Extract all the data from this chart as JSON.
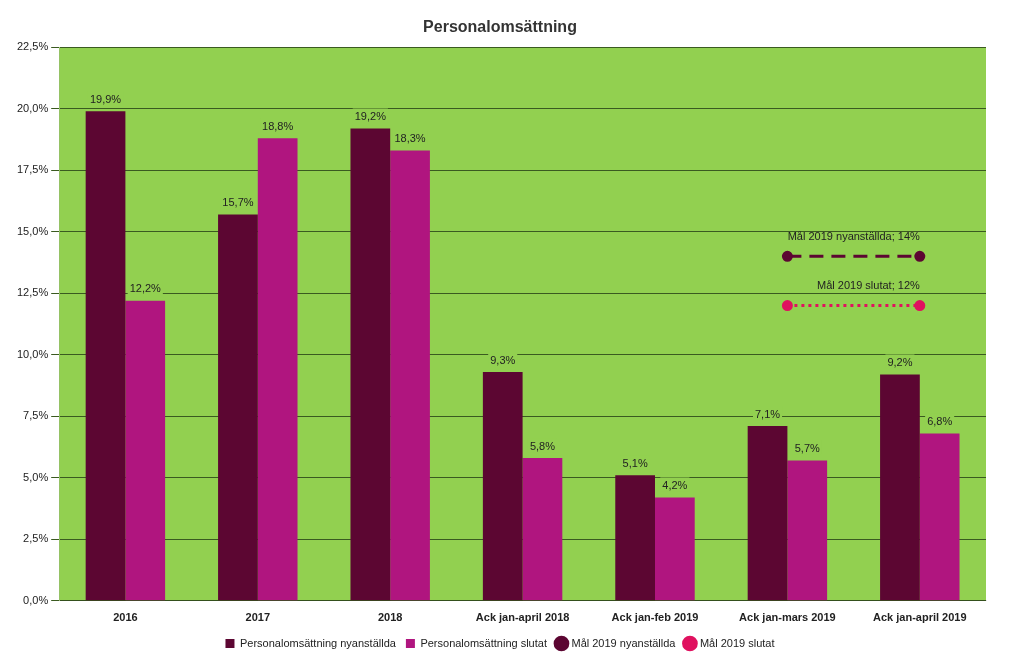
{
  "chart_data": {
    "type": "bar",
    "title": "Personalomsättning",
    "categories": [
      "2016",
      "2017",
      "2018",
      "Ack jan-april 2018",
      "Ack jan-feb 2019",
      "Ack jan-mars 2019",
      "Ack jan-april 2019"
    ],
    "series": [
      {
        "name": "Personalomsättning nyanställda",
        "color": "#5c0632",
        "values": [
          19.9,
          15.7,
          19.2,
          9.3,
          5.1,
          7.1,
          9.2
        ],
        "value_labels": [
          "19,9%",
          "15,7%",
          "19,2%",
          "9,3%",
          "5,1%",
          "7,1%",
          "9,2%"
        ]
      },
      {
        "name": "Personalomsättning slutat",
        "color": "#b0157f",
        "values": [
          12.2,
          18.8,
          18.3,
          5.8,
          4.2,
          5.7,
          6.8
        ],
        "value_labels": [
          "12,2%",
          "18,8%",
          "18,3%",
          "5,8%",
          "4,2%",
          "5,7%",
          "6,8%"
        ]
      },
      {
        "name": "Mål 2019 nyanställda",
        "type": "line",
        "color": "#5c0632",
        "line_style": "dashed",
        "marker": "circle",
        "values": [
          null,
          null,
          null,
          null,
          null,
          14,
          14
        ]
      },
      {
        "name": "Mål 2019 slutat",
        "type": "line",
        "color": "#e0115f",
        "line_style": "dotted",
        "marker": "circle",
        "values": [
          null,
          null,
          null,
          null,
          null,
          12,
          12
        ]
      }
    ],
    "annotations": [
      {
        "text": "Mål 2019 nyanställda; 14%",
        "x": "Ack jan-april 2019",
        "y": 14
      },
      {
        "text": "Mål 2019 slutat; 12%",
        "x": "Ack jan-april 2019",
        "y": 12
      }
    ],
    "ylim": [
      0,
      22.5
    ],
    "yticks": [
      {
        "value": 0,
        "label": "0,0%"
      },
      {
        "value": 2.5,
        "label": "2,5%"
      },
      {
        "value": 5,
        "label": "5,0%"
      },
      {
        "value": 7.5,
        "label": "7,5%"
      },
      {
        "value": 10,
        "label": "10,0%"
      },
      {
        "value": 12.5,
        "label": "12,5%"
      },
      {
        "value": 15,
        "label": "15,0%"
      },
      {
        "value": 17.5,
        "label": "17,5%"
      },
      {
        "value": 20,
        "label": "20,0%"
      },
      {
        "value": 22.5,
        "label": "22,5%"
      }
    ],
    "grid": "y",
    "legend": "bottom"
  }
}
